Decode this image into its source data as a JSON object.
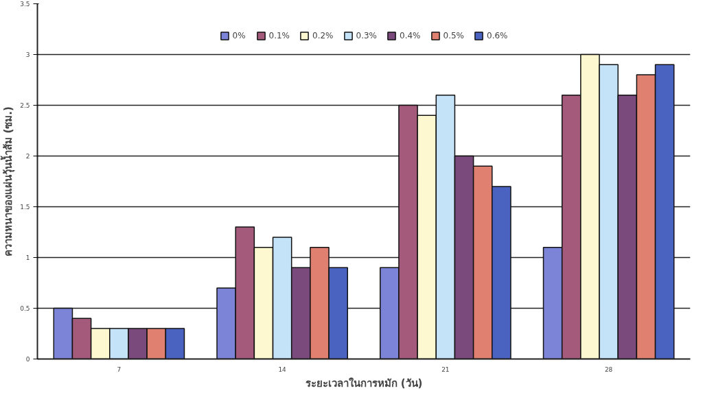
{
  "chart_data": {
    "type": "bar",
    "xlabel": "ระยะเวลาในการหมัก (วัน)",
    "ylabel": "ความหนาของแผ่นวุ้นน้ำส้ม (ซม.)",
    "categories": [
      "7",
      "14",
      "21",
      "28"
    ],
    "series": [
      {
        "name": "0%",
        "color": "#7b84d6",
        "values": [
          0.5,
          0.7,
          0.9,
          1.1
        ]
      },
      {
        "name": "0.1%",
        "color": "#a45a7a",
        "values": [
          0.4,
          1.3,
          2.5,
          2.6
        ]
      },
      {
        "name": "0.2%",
        "color": "#fdf8d0",
        "values": [
          0.3,
          1.1,
          2.4,
          3.0
        ]
      },
      {
        "name": "0.3%",
        "color": "#c4e2f8",
        "values": [
          0.3,
          1.2,
          2.6,
          2.9
        ]
      },
      {
        "name": "0.4%",
        "color": "#7a4a7c",
        "values": [
          0.3,
          0.9,
          2.0,
          2.6
        ]
      },
      {
        "name": "0.5%",
        "color": "#e08070",
        "values": [
          0.3,
          1.1,
          1.9,
          2.8
        ]
      },
      {
        "name": "0.6%",
        "color": "#4a62c0",
        "values": [
          0.3,
          0.9,
          1.7,
          2.9
        ]
      }
    ],
    "ylim": [
      0,
      3.5
    ],
    "yticks": [
      0,
      0.5,
      1,
      1.5,
      2,
      2.5,
      3,
      3.5
    ],
    "grid": "y",
    "legend": "top"
  }
}
